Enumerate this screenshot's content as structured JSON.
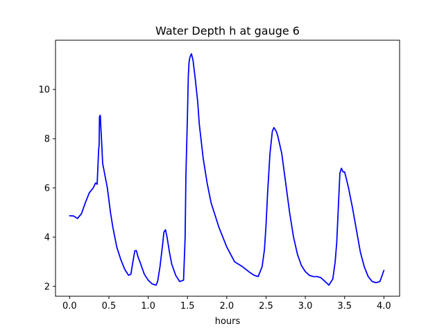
{
  "chart_data": {
    "type": "line",
    "title": "Water Depth h at gauge 6",
    "xlabel": "hours",
    "ylabel": "",
    "xlim": [
      -0.18,
      4.2
    ],
    "ylim": [
      1.6,
      12.0
    ],
    "xticks": [
      0.0,
      0.5,
      1.0,
      1.5,
      2.0,
      2.5,
      3.0,
      3.5,
      4.0
    ],
    "xtick_labels": [
      "0.0",
      "0.5",
      "1.0",
      "1.5",
      "2.0",
      "2.5",
      "3.0",
      "3.5",
      "4.0"
    ],
    "yticks": [
      2,
      4,
      6,
      8,
      10
    ],
    "ytick_labels": [
      "2",
      "4",
      "6",
      "8",
      "10"
    ],
    "grid": false,
    "series": [
      {
        "color": "#0000ff",
        "x": [
          0.0,
          0.05,
          0.1,
          0.15,
          0.2,
          0.25,
          0.3,
          0.33,
          0.35,
          0.37,
          0.375,
          0.38,
          0.39,
          0.4,
          0.41,
          0.42,
          0.45,
          0.48,
          0.5,
          0.52,
          0.55,
          0.6,
          0.65,
          0.7,
          0.75,
          0.78,
          0.8,
          0.83,
          0.85,
          0.87,
          0.9,
          0.95,
          1.0,
          1.05,
          1.1,
          1.12,
          1.15,
          1.18,
          1.2,
          1.22,
          1.24,
          1.27,
          1.3,
          1.35,
          1.4,
          1.45,
          1.47,
          1.48,
          1.5,
          1.51,
          1.52,
          1.53,
          1.55,
          1.57,
          1.6,
          1.63,
          1.65,
          1.7,
          1.75,
          1.8,
          1.85,
          1.9,
          1.95,
          2.0,
          2.05,
          2.1,
          2.2,
          2.3,
          2.35,
          2.4,
          2.45,
          2.48,
          2.5,
          2.52,
          2.55,
          2.58,
          2.6,
          2.63,
          2.65,
          2.7,
          2.75,
          2.8,
          2.85,
          2.9,
          2.95,
          3.0,
          3.05,
          3.1,
          3.15,
          3.2,
          3.25,
          3.3,
          3.35,
          3.38,
          3.4,
          3.42,
          3.44,
          3.46,
          3.48,
          3.5,
          3.52,
          3.55,
          3.6,
          3.65,
          3.7,
          3.75,
          3.8,
          3.85,
          3.9,
          3.95,
          4.0
        ],
        "y": [
          4.87,
          4.86,
          4.76,
          4.95,
          5.4,
          5.8,
          6.0,
          6.2,
          6.15,
          7.6,
          7.7,
          8.9,
          8.95,
          8.3,
          7.7,
          7.0,
          6.5,
          6.0,
          5.5,
          5.0,
          4.4,
          3.6,
          3.1,
          2.7,
          2.45,
          2.5,
          2.9,
          3.45,
          3.45,
          3.2,
          2.95,
          2.5,
          2.25,
          2.1,
          2.05,
          2.2,
          2.8,
          3.6,
          4.2,
          4.3,
          4.0,
          3.4,
          2.9,
          2.45,
          2.2,
          2.25,
          4.0,
          6.5,
          9.0,
          10.5,
          11.1,
          11.3,
          11.45,
          11.2,
          10.4,
          9.5,
          8.6,
          7.2,
          6.2,
          5.4,
          4.9,
          4.4,
          4.0,
          3.6,
          3.3,
          3.0,
          2.8,
          2.55,
          2.45,
          2.4,
          2.8,
          3.5,
          4.5,
          5.8,
          7.4,
          8.3,
          8.45,
          8.3,
          8.1,
          7.4,
          6.2,
          5.0,
          4.0,
          3.3,
          2.85,
          2.6,
          2.45,
          2.4,
          2.4,
          2.35,
          2.2,
          2.05,
          2.3,
          3.0,
          3.8,
          5.2,
          6.6,
          6.8,
          6.65,
          6.65,
          6.4,
          6.0,
          5.2,
          4.3,
          3.4,
          2.8,
          2.4,
          2.2,
          2.15,
          2.2,
          2.65
        ]
      }
    ]
  }
}
